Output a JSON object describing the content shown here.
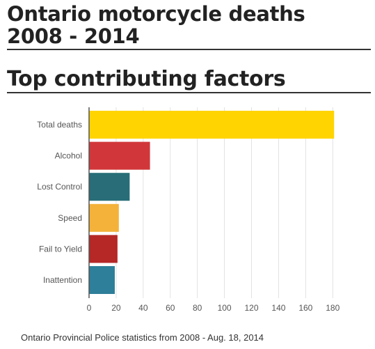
{
  "header": {
    "title_line1": "Ontario motorcycle deaths",
    "title_line2": "2008 - 2014",
    "subtitle": "Top contributing factors"
  },
  "source": "Ontario Provincial Police statistics from 2008 - Aug. 18, 2014",
  "chart_data": {
    "type": "bar",
    "orientation": "horizontal",
    "categories": [
      "Total deaths",
      "Alcohol",
      "Lost Control",
      "Speed",
      "Fail to Yield",
      "Inattention"
    ],
    "values": [
      181,
      45,
      30,
      22,
      21,
      19
    ],
    "colors": [
      "#FFD400",
      "#D1373A",
      "#286D78",
      "#F4B23A",
      "#B52826",
      "#2E7F99"
    ],
    "xticks": [
      0,
      20,
      40,
      60,
      80,
      100,
      120,
      140,
      160,
      180
    ],
    "xlim": [
      0,
      185
    ],
    "grid": true,
    "title": "Top contributing factors",
    "xlabel": "",
    "ylabel": ""
  }
}
